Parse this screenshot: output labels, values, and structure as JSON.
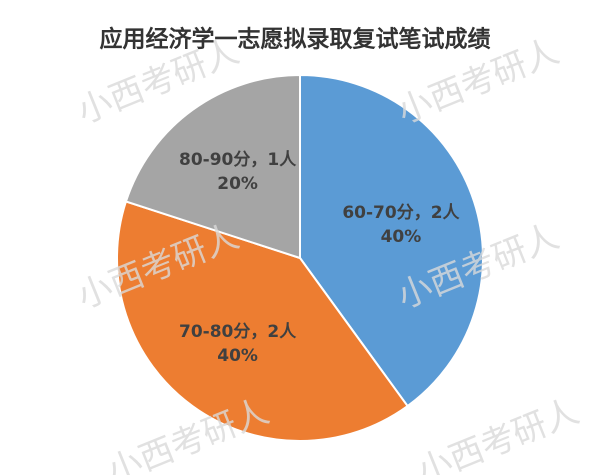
{
  "chart_data": {
    "type": "pie",
    "title": "应用经济学一志愿拟录取复试笔试成绩",
    "categories": [
      "60-70分，2人",
      "70-80分，2人",
      "80-90分，1人"
    ],
    "values": [
      40,
      40,
      20
    ],
    "value_labels": [
      "40%",
      "40%",
      "20%"
    ],
    "colors": [
      "#5b9bd5",
      "#ed7d31",
      "#a5a5a5"
    ]
  },
  "watermark": "小西考研人"
}
